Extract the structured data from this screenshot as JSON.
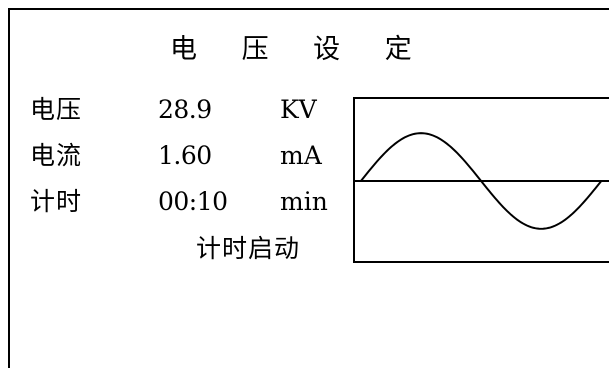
{
  "screen": {
    "title": "电 压 设 定",
    "start_button_label": "计时启动"
  },
  "readings": [
    {
      "label": "电压",
      "value": "28.9",
      "unit": "KV"
    },
    {
      "label": "电流",
      "value": "1.60",
      "unit": "mA"
    },
    {
      "label": "计时",
      "value": "00:10",
      "unit": "min"
    }
  ],
  "waveform": {
    "type": "sine",
    "cycles": 1
  }
}
